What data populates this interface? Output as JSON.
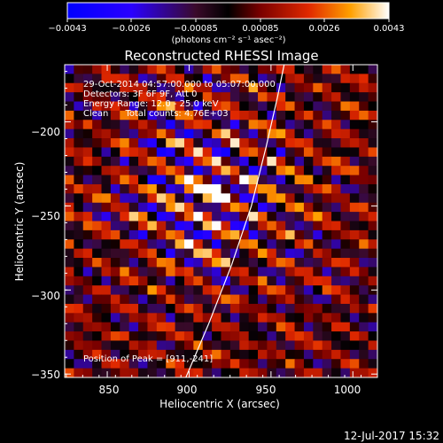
{
  "chart_data": {
    "type": "heatmap",
    "title": "Reconstructed RHESSI Image",
    "xlabel": "Heliocentric X (arcsec)",
    "ylabel": "Heliocentric Y (arcsec)",
    "xlim": [
      824,
      1015
    ],
    "ylim": [
      -352,
      -166
    ],
    "x_ticks": [
      850,
      900,
      950,
      1000
    ],
    "y_ticks": [
      -200,
      -250,
      -300,
      -350
    ],
    "x_tick_labels": [
      "850",
      "900",
      "950",
      "1000"
    ],
    "y_tick_labels": [
      "−200",
      "−250",
      "−300",
      "−350"
    ],
    "colorbar": {
      "min": -0.0043,
      "max": 0.0043,
      "tick_labels": [
        "−0.0043",
        "−0.0026",
        "−0.00085",
        "0.00085",
        "0.0026",
        "0.0043"
      ],
      "unit_label": "(photons cm⁻² s⁻¹ asec⁻²)"
    },
    "annotations": [
      "29-Oct-2014 04:57:00.000 to 05:07:00.000",
      "Detectors: 3F 6F 9F, Att 0",
      "Energy Range: 12.0 - 25.0 keV",
      "Clean      Total counts: 4.76E+03"
    ],
    "peak_label": "Position of Peak = [911,-241]",
    "peak": [
      911,
      -241
    ],
    "limb_curve": [
      [
        898,
        -352
      ],
      [
        912,
        -320
      ],
      [
        926,
        -285
      ],
      [
        938,
        -250
      ],
      [
        947,
        -215
      ],
      [
        954,
        -185
      ],
      [
        958,
        -166
      ]
    ],
    "color": {
      "limb": "#ffffff",
      "background": "#000000"
    },
    "colormap": "red-temperature"
  },
  "footer": {
    "timestamp": "12-Jul-2017 15:32"
  }
}
